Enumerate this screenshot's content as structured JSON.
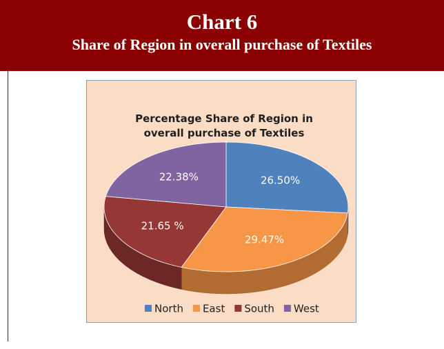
{
  "header": {
    "title": "Chart 6",
    "subtitle": "Share of Region in overall purchase of Textiles"
  },
  "chart_data": {
    "type": "pie",
    "title": "Percentage Share of Region in overall purchase of Textiles",
    "categories": [
      "North",
      "East",
      "South",
      "West"
    ],
    "values": [
      26.5,
      29.47,
      21.65,
      22.38
    ],
    "value_labels": [
      "26.50%",
      "29.47%",
      "21.65 %",
      "22.38%"
    ],
    "colors": [
      "#4f81bd",
      "#f79646",
      "#953735",
      "#8064a2"
    ],
    "legend": "bottom"
  }
}
